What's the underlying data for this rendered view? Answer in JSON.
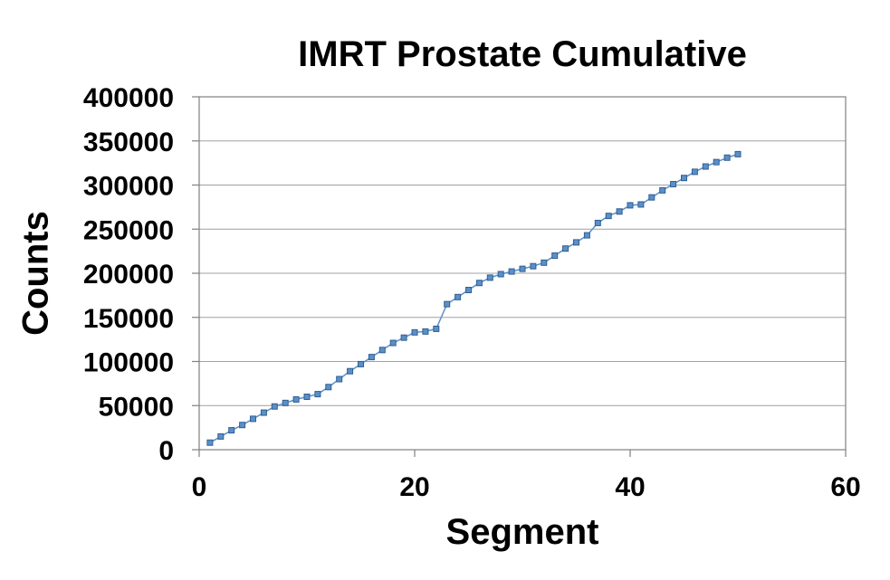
{
  "chart_data": {
    "type": "line",
    "title": "IMRT Prostate Cumulative",
    "xlabel": "Segment",
    "ylabel": "Counts",
    "xlim": [
      0,
      60
    ],
    "ylim": [
      0,
      400000
    ],
    "x_ticks": [
      0,
      20,
      40,
      60
    ],
    "y_ticks": [
      0,
      50000,
      100000,
      150000,
      200000,
      250000,
      300000,
      350000,
      400000
    ],
    "x_tick_labels": [
      "0",
      "20",
      "40",
      "60"
    ],
    "y_tick_labels": [
      "0",
      "50000",
      "100000",
      "150000",
      "200000",
      "250000",
      "300000",
      "350000",
      "400000"
    ],
    "grid": "horizontal",
    "legend": "none",
    "colors": {
      "line": "#5b8fc7",
      "marker": "#2f5f94",
      "grid": "#a0a0a0",
      "axis": "#808080"
    },
    "series": [
      {
        "x": [
          1,
          2,
          3,
          4,
          5,
          6,
          7,
          8,
          9,
          10,
          11,
          12,
          13,
          14,
          15,
          16,
          17,
          18,
          19,
          20,
          21,
          22,
          23,
          24,
          25,
          26,
          27,
          28,
          29,
          30,
          31,
          32,
          33,
          34,
          35,
          36,
          37,
          38,
          39,
          40,
          41,
          42,
          43,
          44,
          45,
          46,
          47,
          48,
          49,
          50
        ],
        "values": [
          8000,
          15000,
          22000,
          28000,
          35000,
          42000,
          49000,
          53000,
          57000,
          60000,
          63000,
          71000,
          80000,
          89000,
          97000,
          105000,
          113000,
          121000,
          127000,
          133000,
          134000,
          137000,
          165000,
          173000,
          181000,
          189000,
          195000,
          199000,
          202000,
          205000,
          208000,
          212000,
          220000,
          228000,
          235000,
          243000,
          257000,
          265000,
          270000,
          277000,
          278000,
          286000,
          294000,
          301000,
          308000,
          315000,
          321000,
          326000,
          331000,
          335000
        ]
      }
    ]
  }
}
